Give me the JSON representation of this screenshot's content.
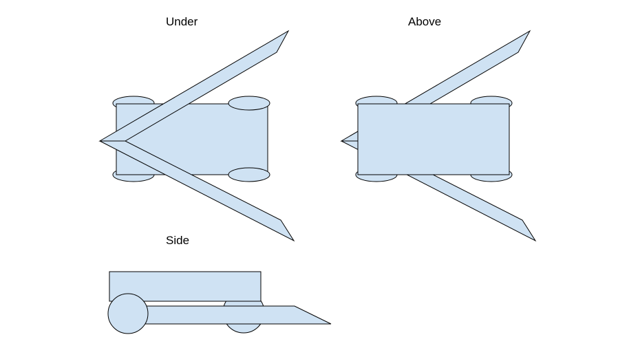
{
  "views": {
    "under": {
      "label": "Under"
    },
    "above": {
      "label": "Above"
    },
    "side": {
      "label": "Side"
    }
  },
  "colors": {
    "fill": "#cfe2f3",
    "stroke": "#000000",
    "background": "#ffffff"
  }
}
